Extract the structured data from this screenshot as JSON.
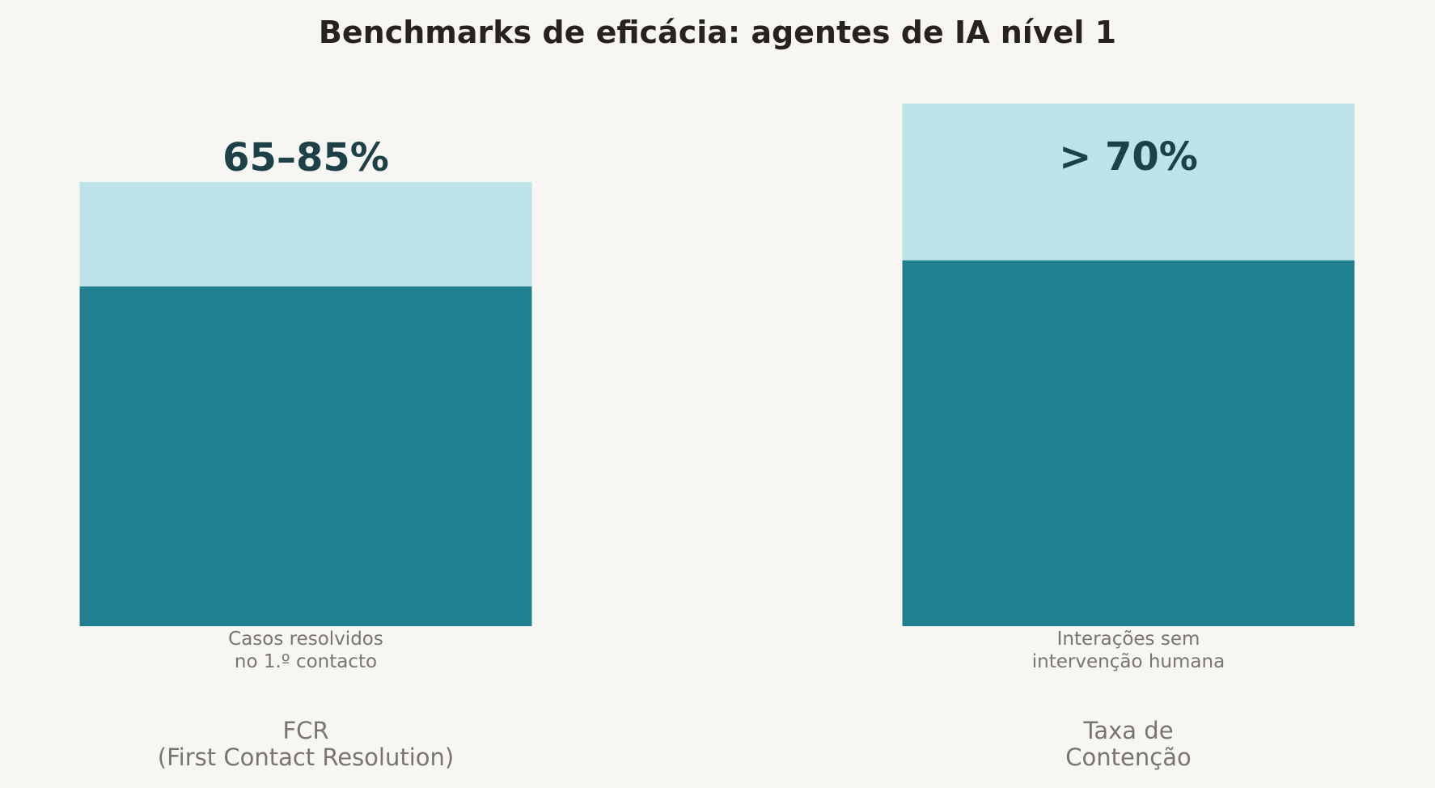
{
  "chart_data": {
    "type": "bar",
    "title": "Benchmarks de eficácia: agentes de IA nível 1",
    "categories": [
      [
        "FCR",
        "(First Contact Resolution)"
      ],
      [
        "Taxa de",
        "Contenção"
      ]
    ],
    "descriptions": [
      [
        "Casos resolvidos",
        "no 1.º contacto"
      ],
      [
        "Interações sem",
        "intervenção humana"
      ]
    ],
    "value_labels": [
      "65–85%",
      "> 70%"
    ],
    "series": [
      {
        "values": [
          65,
          70
        ]
      },
      {
        "values": [
          85,
          100
        ]
      }
    ],
    "ylim": [
      0,
      100
    ],
    "grid": false,
    "legend": "none",
    "colors": {
      "base": "#21808f",
      "range": "#bde2e8",
      "title": "#26231c",
      "value_label": "#1c4148",
      "axis_text": "#787570",
      "background": "#f7f6f3"
    }
  }
}
